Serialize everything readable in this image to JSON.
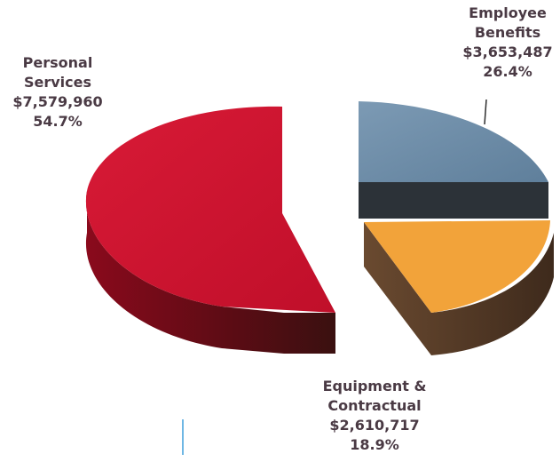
{
  "chart_data": {
    "type": "pie",
    "title": "",
    "slices": [
      {
        "label_line1": "Personal",
        "label_line2": "Services",
        "value": "$7,579,960",
        "percent": "54.7%",
        "amount": 7579960,
        "share": 54.7,
        "color": "#c8102e"
      },
      {
        "label_line1": "Employee",
        "label_line2": "Benefits",
        "value": "$3,653,487",
        "percent": "26.4%",
        "amount": 3653487,
        "share": 26.4,
        "color": "#6f8ea8"
      },
      {
        "label_line1": "Equipment &",
        "label_line2": "Contractual",
        "value": "$2,610,717",
        "percent": "18.9%",
        "amount": 2610717,
        "share": 18.9,
        "color": "#f2a33a"
      }
    ],
    "style": "3d-exploded",
    "legend": "none"
  }
}
